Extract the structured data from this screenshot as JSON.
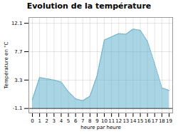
{
  "chart_data": {
    "type": "area",
    "title": "Evolution de la température",
    "xlabel": "heure par heure",
    "ylabel": "Température en °C",
    "x": [
      0,
      1,
      2,
      3,
      4,
      5,
      6,
      7,
      8,
      9,
      10,
      11,
      12,
      13,
      14,
      15,
      16,
      17,
      18,
      19
    ],
    "values": [
      0.3,
      3.7,
      3.5,
      3.3,
      3.0,
      1.5,
      0.4,
      0.1,
      0.8,
      4.0,
      9.5,
      10.0,
      10.5,
      10.4,
      11.2,
      11.0,
      9.3,
      5.8,
      2.1,
      1.7
    ],
    "baseline": -1.1,
    "xlim": [
      -0.5,
      19.5
    ],
    "xticks": [
      0,
      1,
      2,
      3,
      4,
      5,
      6,
      7,
      8,
      9,
      10,
      11,
      12,
      13,
      14,
      15,
      16,
      17,
      18,
      19
    ],
    "ylim": [
      -1.8,
      13.0
    ],
    "yticks": [
      -1.1,
      3.3,
      7.7,
      12.1
    ],
    "grid": true,
    "color": "#60b0cc",
    "line_style": "dotted"
  }
}
